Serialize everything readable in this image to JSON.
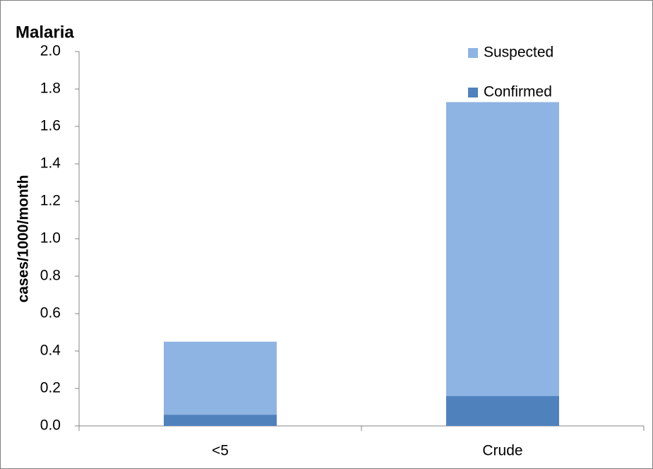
{
  "chart_data": {
    "type": "stacked-bar",
    "title": "Malaria",
    "y_label": "cases/1000/month",
    "categories": [
      "<5",
      "Crude"
    ],
    "series": [
      {
        "name": "Confirmed",
        "color": "#4f81bd",
        "values": [
          0.06,
          0.16
        ]
      },
      {
        "name": "Suspected",
        "color": "#8eb4e3",
        "values": [
          0.39,
          1.57
        ]
      }
    ],
    "ylim": [
      0,
      2
    ],
    "yticks": [
      {
        "value": 0,
        "label": "0.0"
      },
      0.2,
      0.4,
      0.6,
      0.8,
      {
        "value": 1,
        "label": "1.0"
      },
      1.2,
      1.4,
      1.6,
      1.8,
      {
        "value": 2,
        "label": "2.0"
      }
    ],
    "grid": false
  }
}
